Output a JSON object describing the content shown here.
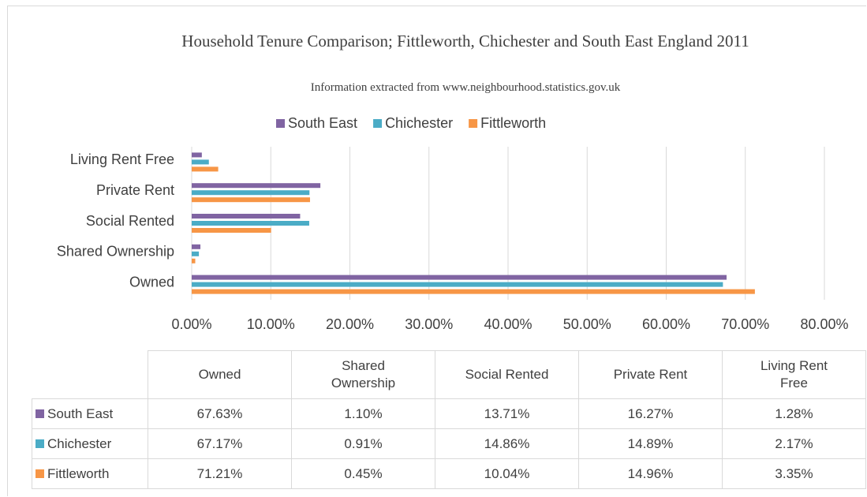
{
  "chart_data": {
    "type": "bar",
    "orientation": "horizontal",
    "title": "Household Tenure Comparison; Fittleworth, Chichester and South East England 2011",
    "subtitle": "Information extracted from www.neighbourhood.statistics.gov.uk",
    "categories": [
      "Owned",
      "Shared Ownership",
      "Social Rented",
      "Private Rent",
      "Living Rent Free"
    ],
    "series": [
      {
        "name": "South East",
        "color": "#8064a2",
        "values": [
          67.63,
          1.1,
          13.71,
          16.27,
          1.28
        ],
        "value_labels": [
          "67.63%",
          "1.10%",
          "13.71%",
          "16.27%",
          "1.28%"
        ]
      },
      {
        "name": "Chichester",
        "color": "#4bacc6",
        "values": [
          67.17,
          0.91,
          14.86,
          14.89,
          2.17
        ],
        "value_labels": [
          "67.17%",
          "0.91%",
          "14.86%",
          "14.89%",
          "2.17%"
        ]
      },
      {
        "name": "Fittleworth",
        "color": "#f79646",
        "values": [
          71.21,
          0.45,
          10.04,
          14.96,
          3.35
        ],
        "value_labels": [
          "71.21%",
          "0.45%",
          "10.04%",
          "14.96%",
          "3.35%"
        ]
      }
    ],
    "xlim": [
      0,
      80
    ],
    "xticks": [
      {
        "value": 0,
        "label": "0.00%"
      },
      {
        "value": 10,
        "label": "10.00%"
      },
      {
        "value": 20,
        "label": "20.00%"
      },
      {
        "value": 30,
        "label": "30.00%"
      },
      {
        "value": 40,
        "label": "40.00%"
      },
      {
        "value": 50,
        "label": "50.00%"
      },
      {
        "value": 60,
        "label": "60.00%"
      },
      {
        "value": 70,
        "label": "70.00%"
      },
      {
        "value": 80,
        "label": "80.00%"
      }
    ],
    "grid": true,
    "legend": "top",
    "data_table": true
  }
}
